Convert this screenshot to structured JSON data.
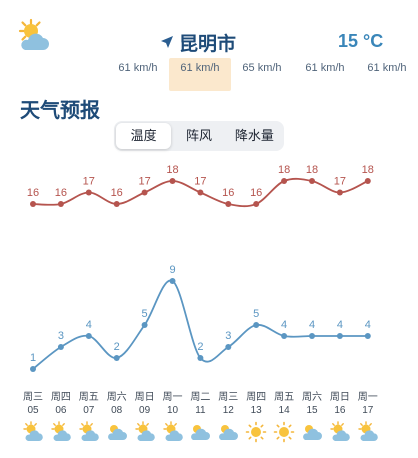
{
  "header": {
    "weather_icon": "sun-behind-cloud-icon",
    "nav_icon": "location-arrow-icon",
    "city": "昆明市",
    "current_temp": "15 °C"
  },
  "wind_strip": [
    "61 km/h",
    "61 km/h",
    "65 km/h",
    "61 km/h",
    "61 km/h"
  ],
  "wind_active_index": 1,
  "section_title": "天气预报",
  "tabs": [
    {
      "label": "温度",
      "active": true
    },
    {
      "label": "阵风",
      "active": false
    },
    {
      "label": "降水量",
      "active": false
    }
  ],
  "chart_data": {
    "type": "line",
    "x": [
      "周三 05",
      "周四 06",
      "周五 07",
      "周六 08",
      "周日 09",
      "周一 10",
      "周二 11",
      "周三 12",
      "周四 13",
      "周五 14",
      "周六 15",
      "周日 16",
      "周一 17"
    ],
    "series": [
      {
        "values": [
          16,
          16,
          17,
          16,
          17,
          18,
          17,
          16,
          16,
          18,
          18,
          17,
          18
        ],
        "color": "#b5544e"
      },
      {
        "values": [
          1,
          3,
          4,
          2,
          5,
          9,
          2,
          3,
          5,
          4,
          4,
          4,
          4
        ],
        "color": "#5b96c2"
      }
    ],
    "ylabel": "",
    "xlabel": "",
    "title": ""
  },
  "days": [
    {
      "weekday": "周三",
      "date": "05",
      "icon": "sun-behind-cloud-icon"
    },
    {
      "weekday": "周四",
      "date": "06",
      "icon": "sun-behind-cloud-icon"
    },
    {
      "weekday": "周五",
      "date": "07",
      "icon": "sun-behind-cloud-icon"
    },
    {
      "weekday": "周六",
      "date": "08",
      "icon": "cloud-icon"
    },
    {
      "weekday": "周日",
      "date": "09",
      "icon": "sun-behind-cloud-icon"
    },
    {
      "weekday": "周一",
      "date": "10",
      "icon": "sun-behind-cloud-icon"
    },
    {
      "weekday": "周二",
      "date": "11",
      "icon": "cloud-icon"
    },
    {
      "weekday": "周三",
      "date": "12",
      "icon": "cloud-icon"
    },
    {
      "weekday": "周四",
      "date": "13",
      "icon": "sun-icon"
    },
    {
      "weekday": "周五",
      "date": "14",
      "icon": "sun-icon"
    },
    {
      "weekday": "周六",
      "date": "15",
      "icon": "cloud-icon"
    },
    {
      "weekday": "周日",
      "date": "16",
      "icon": "sun-behind-cloud-icon"
    },
    {
      "weekday": "周一",
      "date": "17",
      "icon": "sun-behind-cloud-icon"
    }
  ]
}
